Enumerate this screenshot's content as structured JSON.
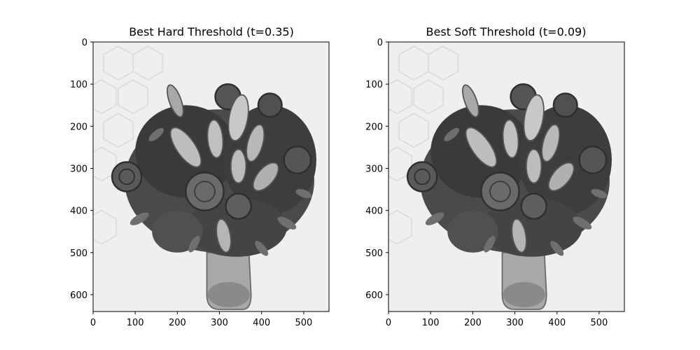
{
  "panels": [
    {
      "title": "Best Hard Threshold (t=0.35)",
      "x_ticks": [
        "0",
        "100",
        "200",
        "300",
        "400",
        "500"
      ],
      "y_ticks": [
        "0",
        "100",
        "200",
        "300",
        "400",
        "500",
        "600"
      ],
      "image_content": "grayscale photo of a bouquet of lilies and roses in a glass vase on a light hexagon-patterned background"
    },
    {
      "title": "Best Soft Threshold (t=0.09)",
      "x_ticks": [
        "0",
        "100",
        "200",
        "300",
        "400",
        "500"
      ],
      "y_ticks": [
        "0",
        "100",
        "200",
        "300",
        "400",
        "500",
        "600"
      ],
      "image_content": "grayscale photo of a bouquet of lilies and roses in a glass vase on a light hexagon-patterned background"
    }
  ],
  "colors": {
    "background": "#ffffff",
    "axes": "#000000",
    "image_bg": "#eeeeee",
    "foliage_dark": "#3a3a3a",
    "foliage_mid": "#6a6a6a",
    "petal_light": "#c4c4c4"
  }
}
